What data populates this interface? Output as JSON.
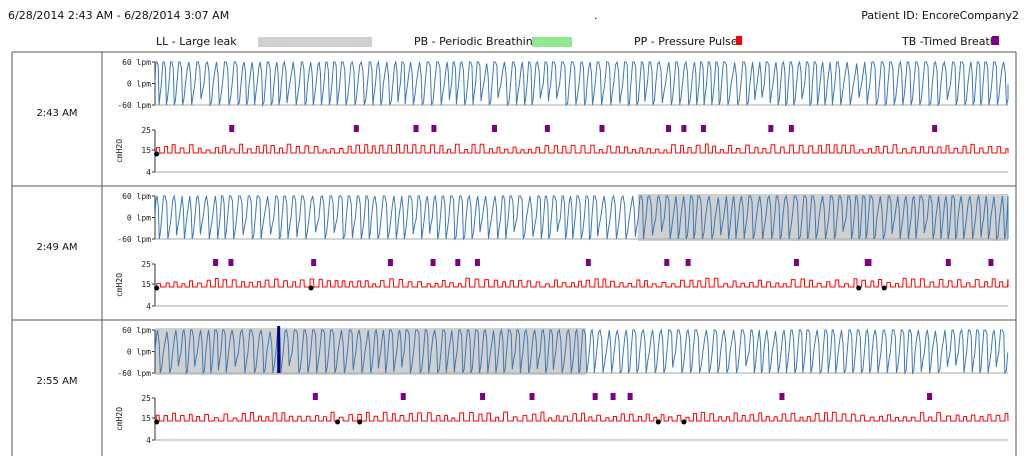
{
  "header": {
    "range": "6/28/2014  2:43 AM - 6/28/2014  3:07 AM",
    "dot": ".",
    "patient": "Patient ID: EncoreCompany2"
  },
  "legend": [
    {
      "label": "LL - Large leak",
      "color": "#d0d0d0"
    },
    {
      "label": "PB - Periodic Breathing",
      "color": "#90e890"
    },
    {
      "label": "PP - Pressure Pulse",
      "color": "#ff0000"
    },
    {
      "label": "TB -Timed Breath",
      "color": "#800080"
    }
  ],
  "chart_data": {
    "type": "line",
    "flow_axis": {
      "ticks": [
        "60 lpm",
        "0 lpm",
        "-60 lpm"
      ],
      "values": [
        60,
        0,
        -60
      ]
    },
    "pressure_axis": {
      "label": "cmH2O",
      "ticks": [
        "25",
        "15",
        "4"
      ],
      "values": [
        25,
        15,
        4
      ]
    },
    "flow_color": "#3a7ab8",
    "pressure_color": "#ff0000",
    "leak_color": "#d0d0d0",
    "timed_breath_color": "#800080",
    "rows": [
      {
        "time": "2:43 AM",
        "large_leak": [],
        "timed_breaths": [
          0.09,
          0.236,
          0.306,
          0.327,
          0.398,
          0.46,
          0.524,
          0.602,
          0.62,
          0.643,
          0.722,
          0.746,
          0.914
        ],
        "pressure_events": [
          0.002
        ]
      },
      {
        "time": "2:49 AM",
        "large_leak": [
          [
            0.566,
            1.0
          ]
        ],
        "timed_breaths": [
          0.071,
          0.089,
          0.186,
          0.276,
          0.326,
          0.355,
          0.378,
          0.508,
          0.6,
          0.625,
          0.752,
          0.835,
          0.837,
          0.93,
          0.98
        ],
        "pressure_events": [
          0.002,
          0.183,
          0.825,
          0.855
        ]
      },
      {
        "time": "2:55 AM",
        "large_leak": [
          [
            0.0,
            0.505
          ]
        ],
        "marker": 0.145,
        "timed_breaths": [
          0.188,
          0.291,
          0.384,
          0.442,
          0.516,
          0.537,
          0.557,
          0.735,
          0.908
        ],
        "pressure_events": [
          0.002,
          0.214,
          0.24,
          0.59,
          0.62
        ]
      }
    ]
  }
}
